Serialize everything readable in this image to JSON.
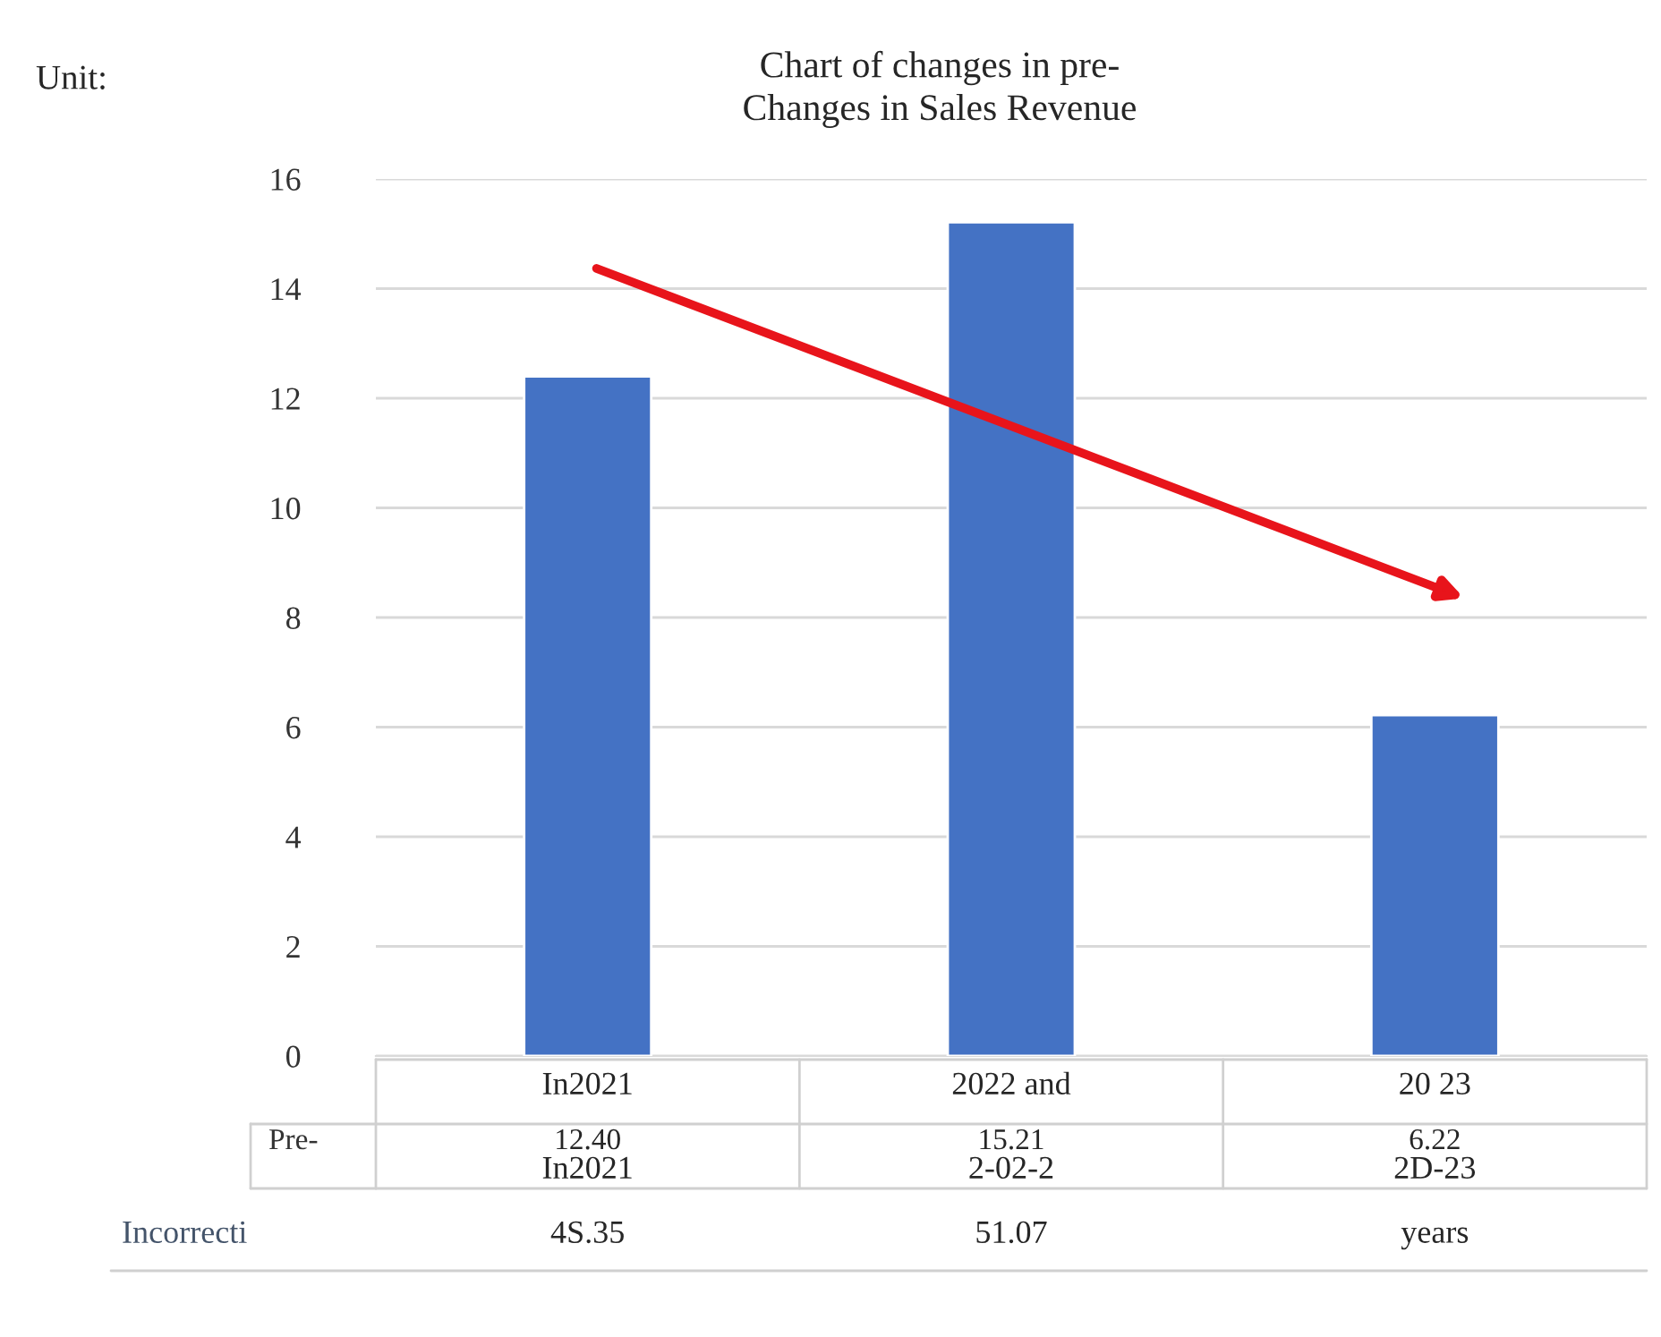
{
  "chart_data": {
    "type": "bar",
    "title": "Changes in Sales Revenue",
    "subtitle": "Chart of changes in pre-",
    "categories": [
      "In2021",
      "2022 and",
      "20 23"
    ],
    "series": [
      {
        "name": "Pre-",
        "color": "#4472c4",
        "values": [
          12.4,
          15.21,
          6.22
        ],
        "value_labels": [
          "12.40",
          "15.21",
          "6.22"
        ]
      }
    ],
    "ylim": [
      0,
      16
    ],
    "yticks": [
      0,
      2,
      4,
      6,
      8,
      10,
      12,
      14,
      16
    ],
    "grid": "y",
    "legend": false,
    "annotations": [
      "Unit:",
      "In2021",
      "2-02-2",
      "2D-23",
      "Incorrecti",
      "4S.35",
      "51.07",
      "years"
    ]
  }
}
